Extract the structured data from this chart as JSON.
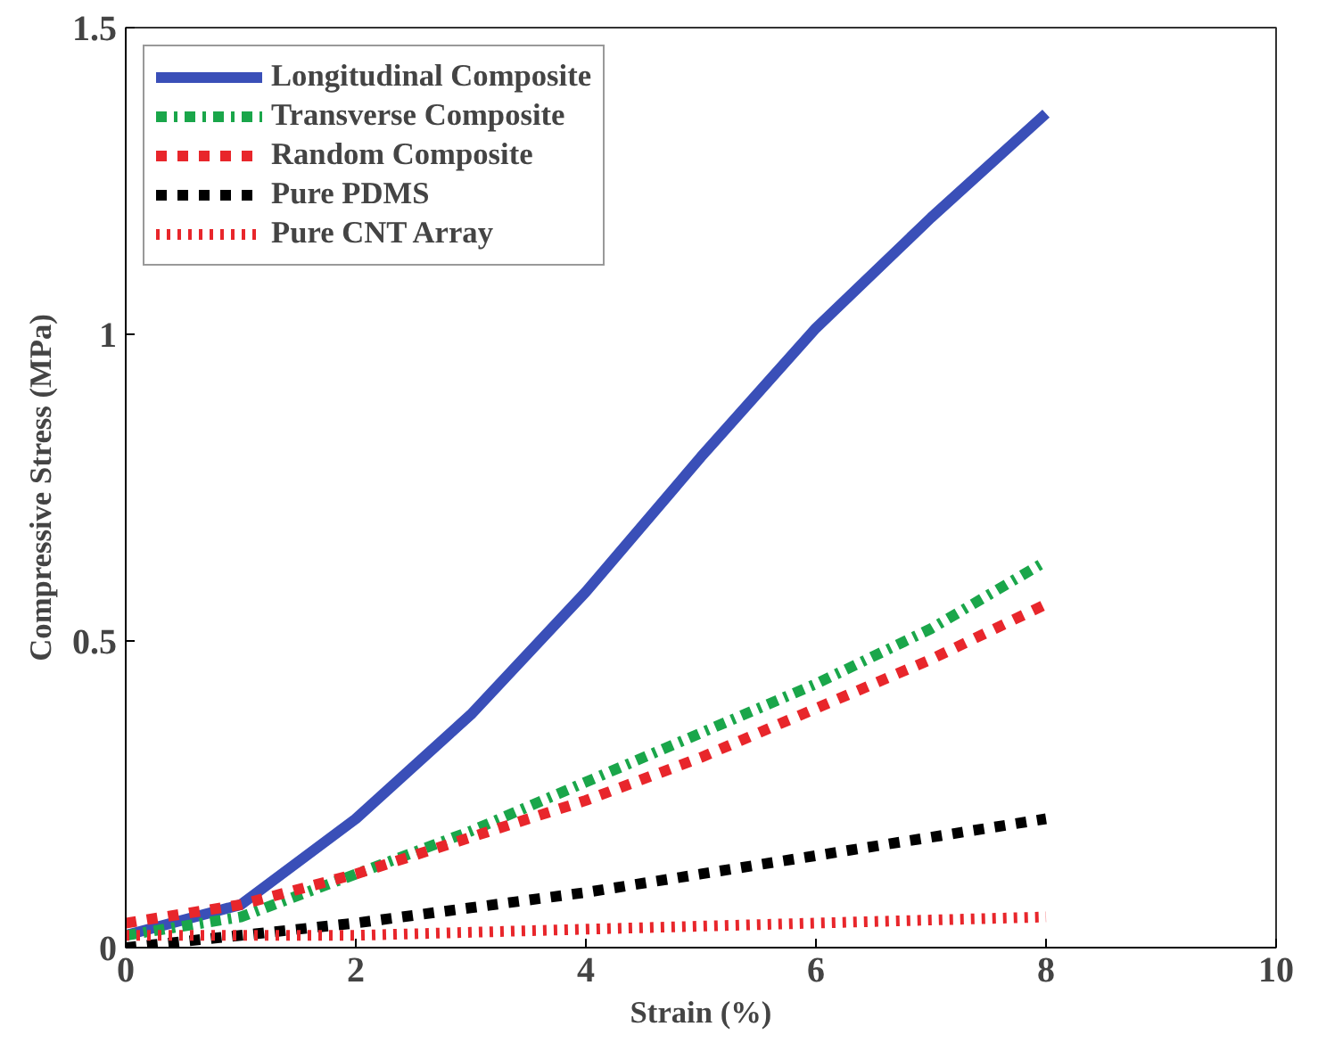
{
  "chart_data": {
    "type": "line",
    "xlabel": "Strain (%)",
    "ylabel": "Compressive Stress (MPa)",
    "x": [
      0,
      1,
      2,
      3,
      4,
      5,
      6,
      7,
      8
    ],
    "series": [
      {
        "name": "Longitudinal Composite",
        "color": "#3a4fb8",
        "line_style": "solid",
        "values": [
          0.02,
          0.07,
          0.21,
          0.38,
          0.58,
          0.8,
          1.01,
          1.19,
          1.36
        ]
      },
      {
        "name": "Transverse Composite",
        "color": "#1aa64a",
        "line_style": "dashdot",
        "values": [
          0.02,
          0.05,
          0.12,
          0.19,
          0.27,
          0.35,
          0.43,
          0.52,
          0.63
        ]
      },
      {
        "name": "Random Composite",
        "color": "#e8262b",
        "line_style": "dashed",
        "values": [
          0.04,
          0.07,
          0.12,
          0.18,
          0.24,
          0.31,
          0.39,
          0.47,
          0.56
        ]
      },
      {
        "name": "Pure PDMS",
        "color": "#000000",
        "line_style": "dashed",
        "values": [
          0.0,
          0.02,
          0.04,
          0.065,
          0.09,
          0.12,
          0.15,
          0.18,
          0.21
        ]
      },
      {
        "name": "Pure CNT Array",
        "color": "#e8262b",
        "line_style": "dotted",
        "values": [
          0.02,
          0.02,
          0.02,
          0.025,
          0.03,
          0.035,
          0.04,
          0.045,
          0.05
        ]
      }
    ],
    "xlim": [
      0,
      10
    ],
    "ylim": [
      0,
      1.5
    ],
    "xticks": [
      0,
      2,
      4,
      6,
      8,
      10
    ],
    "yticks": [
      0,
      {
        "value": 0.5,
        "label": "0.5"
      },
      1,
      1.5
    ],
    "grid": false,
    "legend": "top left",
    "marker": "none"
  }
}
